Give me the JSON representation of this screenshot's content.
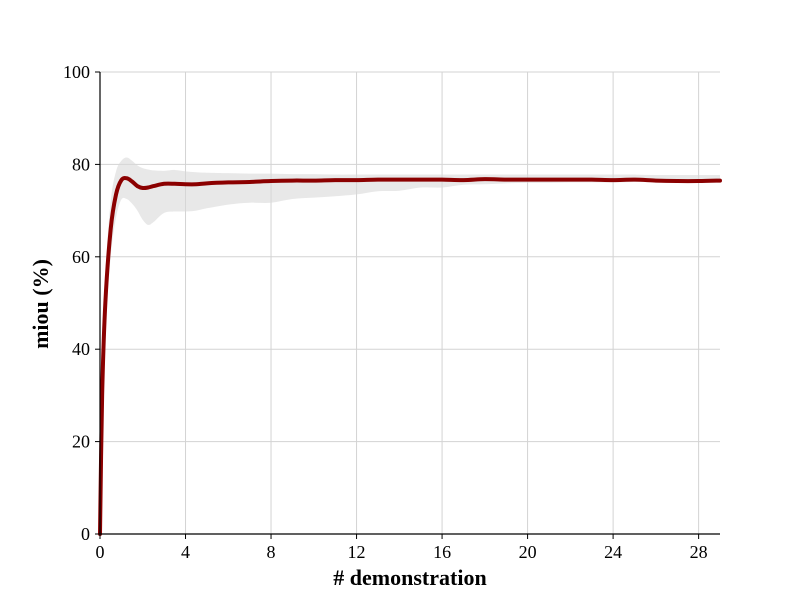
{
  "chart_data": {
    "type": "line",
    "title": "",
    "xlabel": "# demonstration",
    "ylabel": "miou (%)",
    "xlim": [
      0,
      29
    ],
    "ylim": [
      0,
      100
    ],
    "xticks": [
      0,
      4,
      8,
      12,
      16,
      20,
      24,
      28
    ],
    "yticks": [
      0,
      20,
      40,
      60,
      80,
      100
    ],
    "grid": true,
    "colors": {
      "line": "#8b0000",
      "band": "#d9d9d9"
    },
    "series": [
      {
        "x": [
          0,
          0.1,
          0.25,
          0.5,
          0.75,
          1.0,
          1.25,
          1.5,
          1.75,
          2.0,
          2.25,
          2.5,
          3.0,
          3.5,
          4.0,
          4.5,
          5,
          6,
          7,
          8,
          9,
          10,
          11,
          12,
          13,
          14,
          15,
          16,
          17,
          18,
          19,
          20,
          21,
          22,
          23,
          24,
          25,
          26,
          27,
          28,
          29
        ],
        "y": [
          0,
          30,
          50,
          66,
          73.5,
          76.6,
          77.0,
          76.3,
          75.3,
          74.9,
          75.0,
          75.3,
          75.8,
          75.8,
          75.7,
          75.7,
          75.9,
          76.1,
          76.2,
          76.4,
          76.5,
          76.5,
          76.6,
          76.6,
          76.7,
          76.7,
          76.7,
          76.7,
          76.6,
          76.8,
          76.7,
          76.7,
          76.7,
          76.7,
          76.7,
          76.6,
          76.7,
          76.5,
          76.4,
          76.4,
          76.5
        ],
        "upper": [
          0,
          34,
          56,
          72,
          78.5,
          80.8,
          81.5,
          80.8,
          79.8,
          79.2,
          78.9,
          78.7,
          78.6,
          78.8,
          78.5,
          78.3,
          78.2,
          78.1,
          78.0,
          78.0,
          77.9,
          77.9,
          77.8,
          77.8,
          77.8,
          77.8,
          77.8,
          77.8,
          77.8,
          77.8,
          77.8,
          77.8,
          77.8,
          77.8,
          77.8,
          77.8,
          77.8,
          77.7,
          77.7,
          77.7,
          77.7
        ],
        "lower": [
          0,
          26,
          44,
          60,
          68.5,
          72.4,
          72.5,
          71.5,
          70.0,
          68.0,
          66.9,
          67.5,
          69.5,
          69.8,
          69.8,
          70.0,
          70.5,
          71.3,
          71.7,
          71.7,
          72.5,
          72.8,
          73.1,
          73.5,
          74.2,
          74.3,
          75.0,
          75.0,
          75.6,
          75.7,
          75.9,
          76.0,
          76.0,
          76.1,
          76.1,
          76.1,
          76.2,
          76.2,
          76.2,
          76.2,
          76.2
        ]
      }
    ]
  }
}
